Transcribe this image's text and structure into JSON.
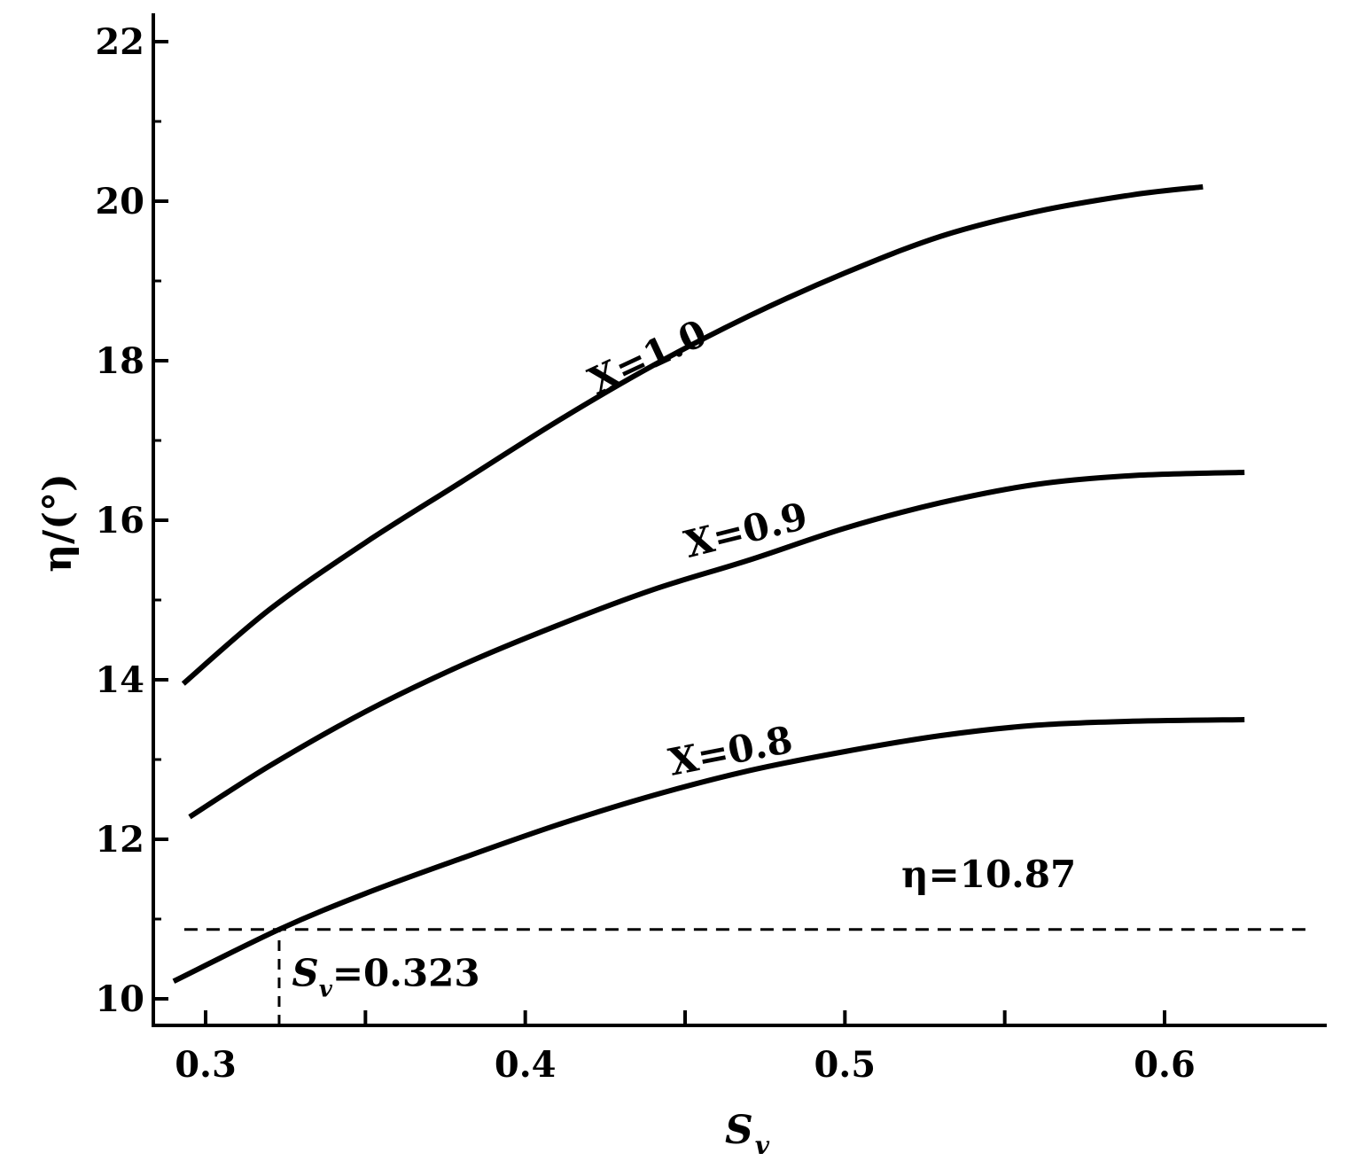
{
  "chart_data": {
    "type": "line",
    "xlabel": {
      "main": "S",
      "sub": "v"
    },
    "ylabel": "η/(°)",
    "xlim": [
      0.285,
      0.65
    ],
    "ylim": [
      9.7,
      22.4
    ],
    "x_ticks": [
      0.3,
      0.4,
      0.5,
      0.6
    ],
    "x_tick_labels": [
      "0.3",
      "0.4",
      "0.5",
      "0.6"
    ],
    "x_minor_ticks": [
      0.35,
      0.45,
      0.55
    ],
    "y_ticks": [
      10,
      12,
      14,
      16,
      18,
      20,
      22
    ],
    "y_tick_labels": [
      "10",
      "12",
      "14",
      "16",
      "18",
      "20",
      "22"
    ],
    "grid": false,
    "legend": "none",
    "series": [
      {
        "name": "X=1.0",
        "x": [
          0.293,
          0.32,
          0.35,
          0.38,
          0.41,
          0.44,
          0.47,
          0.5,
          0.53,
          0.56,
          0.59,
          0.612
        ],
        "y": [
          13.95,
          14.88,
          15.72,
          16.48,
          17.24,
          17.94,
          18.56,
          19.1,
          19.56,
          19.87,
          20.08,
          20.18
        ]
      },
      {
        "name": "X=0.9",
        "x": [
          0.295,
          0.32,
          0.35,
          0.38,
          0.41,
          0.44,
          0.47,
          0.5,
          0.53,
          0.56,
          0.59,
          0.625
        ],
        "y": [
          12.28,
          12.92,
          13.6,
          14.18,
          14.68,
          15.13,
          15.5,
          15.9,
          16.22,
          16.45,
          16.56,
          16.6
        ]
      },
      {
        "name": "X=0.8",
        "x": [
          0.29,
          0.323,
          0.35,
          0.38,
          0.41,
          0.44,
          0.47,
          0.5,
          0.53,
          0.56,
          0.59,
          0.625
        ],
        "y": [
          10.22,
          10.87,
          11.32,
          11.76,
          12.18,
          12.55,
          12.86,
          13.1,
          13.3,
          13.43,
          13.48,
          13.5
        ]
      }
    ],
    "reference_lines": {
      "horizontal": {
        "y": 10.87,
        "x_from": 0.285,
        "x_to": 0.645
      },
      "vertical": {
        "x": 0.323,
        "y_from": 9.7,
        "y_to": 10.87
      }
    },
    "series_labels": [
      {
        "text": "X=1.0",
        "x": 0.44,
        "y": 17.9,
        "angle": -25
      },
      {
        "text": "X=0.9",
        "x": 0.47,
        "y": 15.72,
        "angle": -14
      },
      {
        "text": "X=0.8",
        "x": 0.465,
        "y": 12.95,
        "angle": -11
      }
    ],
    "annotations": {
      "eta_label": {
        "text": "η=10.87",
        "x": 0.545,
        "y": 11.4
      },
      "sv_label": {
        "main": "S",
        "sub": "v",
        "rest": "=0.323",
        "x": 0.327,
        "y": 10.16
      }
    }
  }
}
